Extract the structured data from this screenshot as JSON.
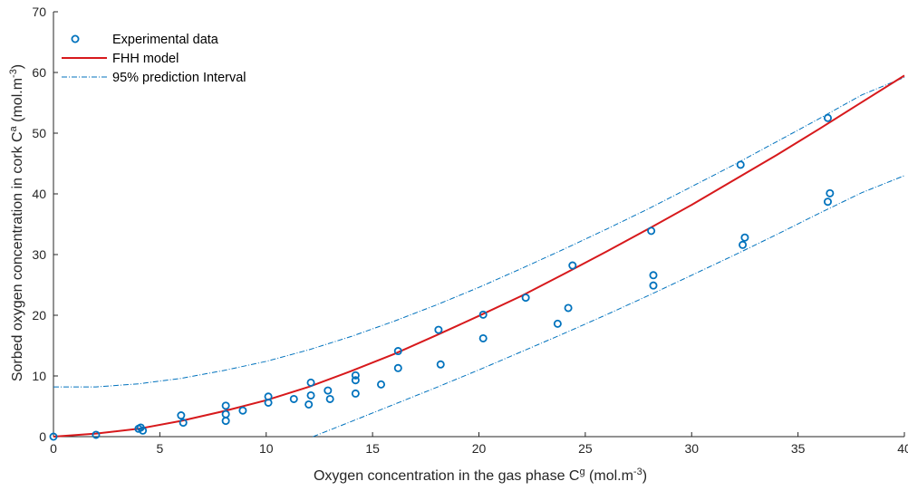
{
  "chart_data": {
    "type": "scatter",
    "xlim": [
      0,
      40
    ],
    "ylim": [
      0,
      70
    ],
    "xticks": [
      0,
      5,
      10,
      15,
      20,
      25,
      30,
      35,
      40
    ],
    "yticks": [
      0,
      10,
      20,
      30,
      40,
      50,
      60,
      70
    ],
    "xlabel": "Oxygen concentration in the gas phase C",
    "xlabel_sup": "g",
    "xlabel_unit": " (mol.m",
    "xlabel_unit_sup": "-3",
    "xlabel_end": ")",
    "ylabel": "Sorbed oxygen concentration in cork C",
    "ylabel_sup": "a",
    "ylabel_unit": " (mol.m",
    "ylabel_unit_sup": "-3",
    "ylabel_end": ")",
    "grid": false,
    "legend_position": "top-left",
    "series": [
      {
        "name": "Experimental data",
        "kind": "markers",
        "color": "#0072BD",
        "points": [
          [
            0,
            0
          ],
          [
            2,
            0.3
          ],
          [
            4,
            1.3
          ],
          [
            4.2,
            1.0
          ],
          [
            4.1,
            1.5
          ],
          [
            6,
            3.5
          ],
          [
            6.1,
            2.3
          ],
          [
            8.1,
            5.1
          ],
          [
            8.1,
            3.7
          ],
          [
            8.1,
            2.6
          ],
          [
            8.9,
            4.3
          ],
          [
            10.1,
            6.6
          ],
          [
            10.1,
            5.6
          ],
          [
            11.3,
            6.2
          ],
          [
            12.1,
            8.9
          ],
          [
            12.1,
            6.8
          ],
          [
            12,
            5.3
          ],
          [
            12.9,
            7.6
          ],
          [
            13,
            6.2
          ],
          [
            14.2,
            10.1
          ],
          [
            14.2,
            9.3
          ],
          [
            14.2,
            7.1
          ],
          [
            15.4,
            8.6
          ],
          [
            16.2,
            14.1
          ],
          [
            16.2,
            11.3
          ],
          [
            18.1,
            17.6
          ],
          [
            18.2,
            11.9
          ],
          [
            20.2,
            20.1
          ],
          [
            20.2,
            16.2
          ],
          [
            22.2,
            22.9
          ],
          [
            23.7,
            18.6
          ],
          [
            24.2,
            21.2
          ],
          [
            24.4,
            28.2
          ],
          [
            28.1,
            33.9
          ],
          [
            28.2,
            26.6
          ],
          [
            28.2,
            24.9
          ],
          [
            32.3,
            44.8
          ],
          [
            32.4,
            31.6
          ],
          [
            32.5,
            32.8
          ],
          [
            36.4,
            52.5
          ],
          [
            36.5,
            40.1
          ],
          [
            36.4,
            38.7
          ]
        ]
      },
      {
        "name": "FHH model",
        "kind": "line",
        "color": "#D7191C",
        "points": [
          [
            0,
            0
          ],
          [
            2,
            0.5
          ],
          [
            4,
            1.3
          ],
          [
            6,
            2.6
          ],
          [
            8,
            4.2
          ],
          [
            10,
            6.0
          ],
          [
            12,
            8.2
          ],
          [
            14,
            10.8
          ],
          [
            16,
            13.6
          ],
          [
            18,
            16.7
          ],
          [
            20,
            19.9
          ],
          [
            22,
            23.2
          ],
          [
            24,
            26.8
          ],
          [
            26,
            30.5
          ],
          [
            28,
            34.3
          ],
          [
            30,
            38.2
          ],
          [
            32,
            42.3
          ],
          [
            34,
            46.4
          ],
          [
            36,
            50.7
          ],
          [
            38,
            55.1
          ],
          [
            40,
            59.5
          ]
        ],
        "upper_curve_offset_note": ""
      },
      {
        "name": "95% prediction Interval",
        "kind": "dashdot",
        "color": "#0072BD",
        "upper": [
          [
            0,
            8.2
          ],
          [
            2,
            8.2
          ],
          [
            4,
            8.7
          ],
          [
            6,
            9.6
          ],
          [
            8,
            10.9
          ],
          [
            10,
            12.4
          ],
          [
            12,
            14.3
          ],
          [
            14,
            16.5
          ],
          [
            16,
            19.0
          ],
          [
            18,
            21.7
          ],
          [
            20,
            24.6
          ],
          [
            22,
            27.7
          ],
          [
            24,
            30.9
          ],
          [
            26,
            34.2
          ],
          [
            28,
            37.6
          ],
          [
            30,
            41.2
          ],
          [
            32,
            44.8
          ],
          [
            34,
            48.6
          ],
          [
            36,
            52.4
          ],
          [
            38,
            56.3
          ],
          [
            40,
            59.2
          ]
        ],
        "lower": [
          [
            12.2,
            0
          ],
          [
            14,
            2.5
          ],
          [
            16,
            5.3
          ],
          [
            18,
            8.1
          ],
          [
            20,
            11.0
          ],
          [
            22,
            14.0
          ],
          [
            24,
            17.0
          ],
          [
            26,
            20.1
          ],
          [
            28,
            23.3
          ],
          [
            30,
            26.6
          ],
          [
            32,
            29.9
          ],
          [
            34,
            33.3
          ],
          [
            36,
            36.8
          ],
          [
            38,
            40.2
          ],
          [
            40,
            43.0
          ]
        ]
      }
    ]
  }
}
